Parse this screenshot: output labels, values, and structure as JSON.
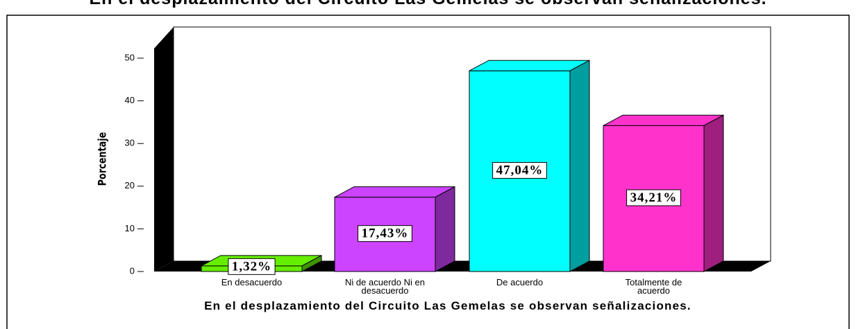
{
  "chart_data": {
    "type": "bar3d",
    "title": "En el desplazamiento del Circuito Las Gemelas se observan señalizaciones.",
    "ylabel": "Porcentaje",
    "xlabel": "En el desplazamiento del Circuito Las Gemelas se observan señalizaciones.",
    "categories": [
      "En desacuerdo",
      "Ni de acuerdo Ni en desacuerdo",
      "De acuerdo",
      "Totalmente de acuerdo"
    ],
    "values": [
      1.32,
      17.43,
      47.04,
      34.21
    ],
    "value_labels": [
      "1,32%",
      "17,43%",
      "47,04%",
      "34,21%"
    ],
    "colors": [
      "#66ee00",
      "#cc44ff",
      "#00ffff",
      "#ff33cc"
    ],
    "ylim": [
      0,
      50
    ],
    "yticks": [
      0,
      10,
      20,
      30,
      40,
      50
    ]
  }
}
